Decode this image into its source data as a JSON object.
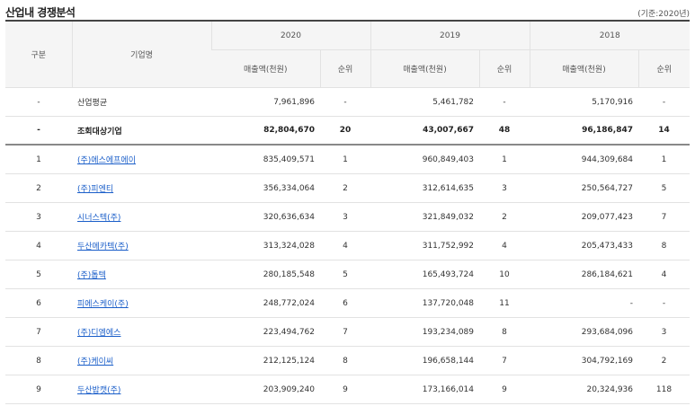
{
  "section_title": "산업내 경쟁분석",
  "basis_note": "(기준:2020년)",
  "headers": {
    "rank_col": "구분",
    "company_col": "기업명",
    "years": [
      "2020",
      "2019",
      "2018"
    ],
    "sales_label": "매출액(천원)",
    "rank_label": "순위"
  },
  "rows": [
    {
      "no": "-",
      "name": "산업평균",
      "link": false,
      "bold": false,
      "s2020": "7,961,896",
      "r2020": "-",
      "s2019": "5,461,782",
      "r2019": "-",
      "s2018": "5,170,916",
      "r2018": "-"
    },
    {
      "no": "-",
      "name": "조회대상기업",
      "link": false,
      "bold": true,
      "s2020": "82,804,670",
      "r2020": "20",
      "s2019": "43,007,667",
      "r2019": "48",
      "s2018": "96,186,847",
      "r2018": "14"
    },
    {
      "no": "1",
      "name": "(주)에스에프에이",
      "link": true,
      "bold": false,
      "s2020": "835,409,571",
      "r2020": "1",
      "s2019": "960,849,403",
      "r2019": "1",
      "s2018": "944,309,684",
      "r2018": "1"
    },
    {
      "no": "2",
      "name": "(주)피엔티",
      "link": true,
      "bold": false,
      "s2020": "356,334,064",
      "r2020": "2",
      "s2019": "312,614,635",
      "r2019": "3",
      "s2018": "250,564,727",
      "r2018": "5"
    },
    {
      "no": "3",
      "name": "시너스텍(주)",
      "link": true,
      "bold": false,
      "s2020": "320,636,634",
      "r2020": "3",
      "s2019": "321,849,032",
      "r2019": "2",
      "s2018": "209,077,423",
      "r2018": "7"
    },
    {
      "no": "4",
      "name": "두산메카텍(주)",
      "link": true,
      "bold": false,
      "s2020": "313,324,028",
      "r2020": "4",
      "s2019": "311,752,992",
      "r2019": "4",
      "s2018": "205,473,433",
      "r2018": "8"
    },
    {
      "no": "5",
      "name": "(주)톱텍",
      "link": true,
      "bold": false,
      "s2020": "280,185,548",
      "r2020": "5",
      "s2019": "165,493,724",
      "r2019": "10",
      "s2018": "286,184,621",
      "r2018": "4"
    },
    {
      "no": "6",
      "name": "피에스케이(주)",
      "link": true,
      "bold": false,
      "s2020": "248,772,024",
      "r2020": "6",
      "s2019": "137,720,048",
      "r2019": "11",
      "s2018": "-",
      "r2018": "-"
    },
    {
      "no": "7",
      "name": "(주)디엠에스",
      "link": true,
      "bold": false,
      "s2020": "223,494,762",
      "r2020": "7",
      "s2019": "193,234,089",
      "r2019": "8",
      "s2018": "293,684,096",
      "r2018": "3"
    },
    {
      "no": "8",
      "name": "(주)케이씨",
      "link": true,
      "bold": false,
      "s2020": "212,125,124",
      "r2020": "8",
      "s2019": "196,658,144",
      "r2019": "7",
      "s2018": "304,792,169",
      "r2018": "2"
    },
    {
      "no": "9",
      "name": "두산밥캣(주)",
      "link": true,
      "bold": false,
      "s2020": "203,909,240",
      "r2020": "9",
      "s2019": "173,166,014",
      "r2019": "9",
      "s2018": "20,324,936",
      "r2018": "118"
    }
  ]
}
